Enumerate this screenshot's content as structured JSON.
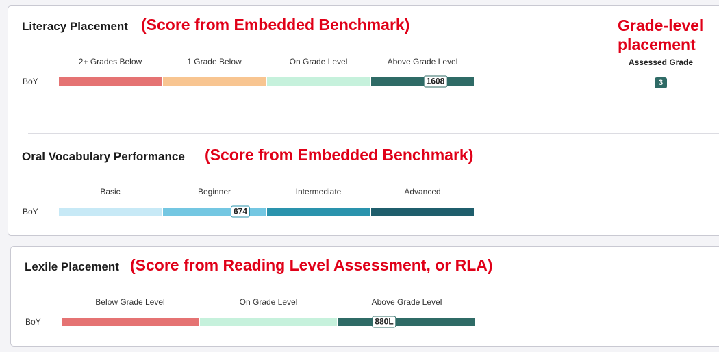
{
  "literacy": {
    "title": "Literacy Placement",
    "annotation": "(Score from Embedded Benchmark)",
    "bands": [
      {
        "label": "2+ Grades Below",
        "color": "#e57373"
      },
      {
        "label": "1 Grade Below",
        "color": "#f8c591"
      },
      {
        "label": "On Grade Level",
        "color": "#c6f1dc"
      },
      {
        "label": "Above Grade Level",
        "color": "#2f6b66"
      }
    ],
    "row_label": "BoY",
    "score": 1608,
    "grade_annotation": "Grade-level placement",
    "assessed_grade_label": "Assessed Grade",
    "assessed_grade": 3
  },
  "vocabulary": {
    "title": "Oral Vocabulary Performance",
    "annotation": "(Score from Embedded Benchmark)",
    "bands": [
      {
        "label": "Basic",
        "color": "#c7e9f6"
      },
      {
        "label": "Beginner",
        "color": "#74c7e2"
      },
      {
        "label": "Intermediate",
        "color": "#2a93ad"
      },
      {
        "label": "Advanced",
        "color": "#1f5e6c"
      }
    ],
    "row_label": "BoY",
    "score": 674
  },
  "lexile": {
    "title": "Lexile Placement",
    "annotation": "(Score from Reading Level Assessment, or RLA)",
    "bands": [
      {
        "label": "Below Grade Level",
        "color": "#e57373"
      },
      {
        "label": "On Grade Level",
        "color": "#c6f1dc"
      },
      {
        "label": "Above Grade Level",
        "color": "#2f6b66"
      }
    ],
    "row_label": "BoY",
    "score": "880L"
  }
}
